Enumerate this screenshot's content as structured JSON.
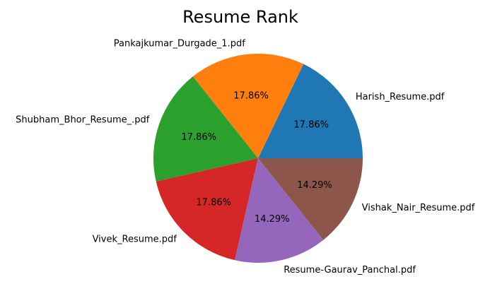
{
  "chart_data": {
    "type": "pie",
    "title": "Resume Rank",
    "start_angle_deg": 0,
    "direction": "counterclockwise",
    "slices": [
      {
        "label": "Harish_Resume.pdf",
        "value": 17.86,
        "pct_label": "17.86%",
        "color": "#1f77b4"
      },
      {
        "label": "Pankajkumar_Durgade_1.pdf",
        "value": 17.86,
        "pct_label": "17.86%",
        "color": "#ff7f0e"
      },
      {
        "label": "Shubham_Bhor_Resume_.pdf",
        "value": 17.86,
        "pct_label": "17.86%",
        "color": "#2ca02c"
      },
      {
        "label": "Vivek_Resume.pdf",
        "value": 17.86,
        "pct_label": "17.86%",
        "color": "#d62728"
      },
      {
        "label": "Resume-Gaurav_Panchal.pdf",
        "value": 14.29,
        "pct_label": "14.29%",
        "color": "#9467bd"
      },
      {
        "label": "Vishak_Nair_Resume.pdf",
        "value": 14.29,
        "pct_label": "14.29%",
        "color": "#8c564b"
      }
    ]
  }
}
